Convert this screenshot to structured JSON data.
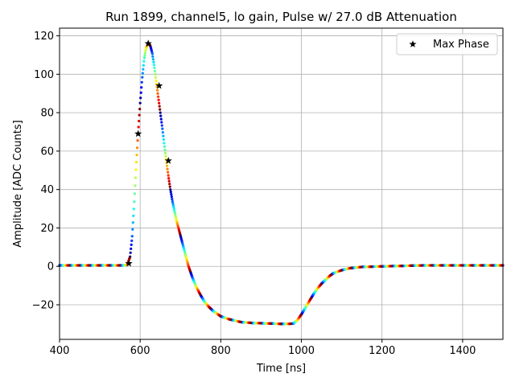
{
  "chart_data": {
    "type": "scatter",
    "title": "Run 1899, channel5, lo gain, Pulse w/ 27.0 dB Attenuation",
    "xlabel": "Time [ns]",
    "ylabel": "Amplitude [ADC Counts]",
    "xlim": [
      400,
      1500
    ],
    "ylim": [
      -38,
      124
    ],
    "xticks": [
      400,
      600,
      800,
      1000,
      1200,
      1400
    ],
    "yticks": [
      -20,
      0,
      20,
      40,
      60,
      80,
      100,
      120
    ],
    "xtick_labels": [
      "400",
      "600",
      "800",
      "1000",
      "1200",
      "1400"
    ],
    "ytick_labels": [
      "−20",
      "0",
      "20",
      "40",
      "60",
      "80",
      "100",
      "120"
    ],
    "grid": true,
    "legend": {
      "position": "top-right",
      "entries": [
        "Max Phase"
      ]
    },
    "colormap": "jet",
    "waveform": {
      "name": "pulse samples (color = phase)",
      "x": [
        400,
        560,
        568,
        575,
        580,
        585,
        590,
        595,
        600,
        605,
        610,
        615,
        620,
        625,
        630,
        635,
        640,
        645,
        650,
        655,
        660,
        665,
        670,
        675,
        680,
        690,
        700,
        710,
        720,
        730,
        740,
        750,
        760,
        770,
        780,
        800,
        820,
        850,
        880,
        900,
        930,
        960,
        980,
        990,
        1000,
        1010,
        1020,
        1030,
        1040,
        1050,
        1060,
        1070,
        1080,
        1100,
        1120,
        1150,
        1200,
        1300,
        1400,
        1500
      ],
      "y": [
        0.5,
        0.5,
        1,
        5,
        15,
        32,
        52,
        70,
        85,
        98,
        108,
        114,
        116,
        115,
        111,
        104,
        96,
        88,
        80,
        72,
        63,
        55,
        47,
        40,
        34,
        24,
        16,
        8,
        0,
        -6,
        -11,
        -15,
        -18.5,
        -21,
        -23,
        -26,
        -27.5,
        -29,
        -29.5,
        -29.6,
        -29.8,
        -30,
        -29.8,
        -28,
        -25,
        -21.5,
        -18,
        -14.5,
        -11.5,
        -9,
        -7,
        -5,
        -3.5,
        -2,
        -1,
        -0.3,
        0,
        0.5,
        0.5,
        0.5
      ]
    },
    "max_phase_points": {
      "name": "Max Phase",
      "x": [
        572,
        595,
        620,
        647,
        670
      ],
      "y": [
        1.5,
        69,
        116,
        94,
        55
      ]
    }
  }
}
